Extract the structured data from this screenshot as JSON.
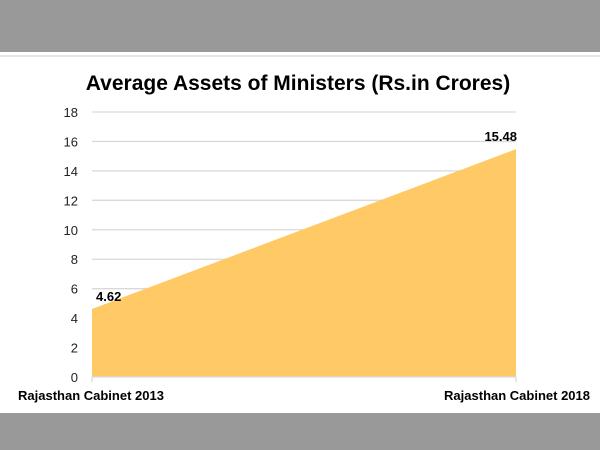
{
  "colors": {
    "band": "#999999",
    "area": "#FFCA66",
    "grid": "#D9D9D9",
    "text": "#000000"
  },
  "chart_data": {
    "type": "area",
    "title": "Average Assets of Ministers (Rs.in Crores)",
    "xlabel": "",
    "ylabel": "",
    "categories": [
      "Rajasthan Cabinet 2013",
      "Rajasthan Cabinet 2018"
    ],
    "values": [
      4.62,
      15.48
    ],
    "data_labels": [
      "4.62",
      "15.48"
    ],
    "ylim": [
      0,
      18
    ],
    "yticks": [
      0,
      2,
      4,
      6,
      8,
      10,
      12,
      14,
      16,
      18
    ],
    "grid": true,
    "legend": "none"
  }
}
